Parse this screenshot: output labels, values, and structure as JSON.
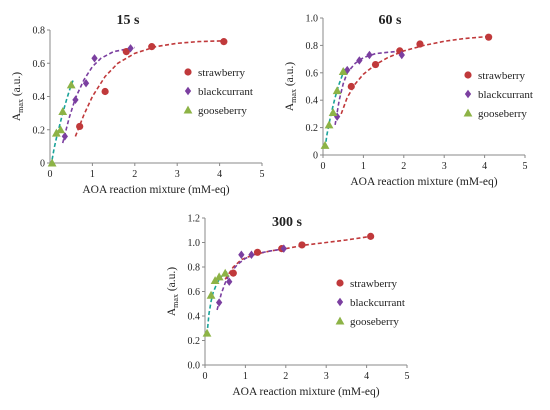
{
  "colors": {
    "strawberry": "#c0393b",
    "blackcurrant": "#7b3fa0",
    "gooseberry": "#8db346",
    "fit_gooseberry": "#1aa39a",
    "axis": "#888888",
    "text": "#222222"
  },
  "chart_data": [
    {
      "type": "scatter",
      "title": "15 s",
      "xlabel": "AOA reaction mixture (mM-eq)",
      "ylabel": "A",
      "ylabel_sub": "max",
      "ylabel_suffix": " (a.u.)",
      "xlim": [
        0,
        5
      ],
      "ylim": [
        0,
        0.8
      ],
      "xticks": [
        "0",
        "1",
        "2",
        "3",
        "4",
        "5"
      ],
      "yticks": [
        "0",
        "0.2",
        "0.4",
        "0.6",
        "0.8"
      ],
      "legend_position": "right",
      "series": [
        {
          "name": "strawberry",
          "marker": "circle",
          "x": [
            0.7,
            1.3,
            1.8,
            2.4,
            4.1
          ],
          "y": [
            0.22,
            0.43,
            0.67,
            0.7,
            0.73
          ]
        },
        {
          "name": "blackcurrant",
          "marker": "diamond",
          "x": [
            0.35,
            0.6,
            0.85,
            1.05,
            1.9
          ],
          "y": [
            0.16,
            0.38,
            0.48,
            0.63,
            0.69
          ]
        },
        {
          "name": "gooseberry",
          "marker": "triangle",
          "x": [
            0.05,
            0.15,
            0.25,
            0.3,
            0.5
          ],
          "y": [
            0.0,
            0.18,
            0.2,
            0.31,
            0.47
          ]
        }
      ],
      "fits": [
        {
          "series": "strawberry",
          "x": [
            0.6,
            0.8,
            1.0,
            1.3,
            1.6,
            2.0,
            2.5,
            3.0,
            3.5,
            4.1
          ],
          "y": [
            0.16,
            0.29,
            0.4,
            0.52,
            0.6,
            0.66,
            0.7,
            0.72,
            0.73,
            0.735
          ]
        },
        {
          "series": "blackcurrant",
          "x": [
            0.3,
            0.45,
            0.6,
            0.8,
            1.0,
            1.2,
            1.5,
            1.9,
            2.0
          ],
          "y": [
            0.12,
            0.27,
            0.39,
            0.5,
            0.58,
            0.63,
            0.67,
            0.69,
            0.695
          ]
        },
        {
          "series": "gooseberry",
          "x": [
            0.05,
            0.1,
            0.15,
            0.2,
            0.3,
            0.4,
            0.5,
            0.55
          ],
          "y": [
            0.02,
            0.09,
            0.15,
            0.2,
            0.3,
            0.39,
            0.47,
            0.5
          ]
        }
      ]
    },
    {
      "type": "scatter",
      "title": "60 s",
      "xlabel": "AOA reaction mixture (mM-eq)",
      "ylabel": "A",
      "ylabel_sub": "max",
      "ylabel_suffix": " (a.u.)",
      "xlim": [
        0,
        5
      ],
      "ylim": [
        0,
        1.0
      ],
      "xticks": [
        "0",
        "1",
        "2",
        "3",
        "4",
        "5"
      ],
      "yticks": [
        "0",
        "0.2",
        "0.4",
        "0.6",
        "0.8",
        "1.0"
      ],
      "legend_position": "right",
      "series": [
        {
          "name": "strawberry",
          "marker": "circle",
          "x": [
            0.7,
            1.3,
            1.9,
            2.4,
            4.1
          ],
          "y": [
            0.5,
            0.66,
            0.76,
            0.81,
            0.86
          ]
        },
        {
          "name": "blackcurrant",
          "marker": "diamond",
          "x": [
            0.35,
            0.6,
            0.9,
            1.15,
            1.95
          ],
          "y": [
            0.28,
            0.62,
            0.69,
            0.73,
            0.73
          ]
        },
        {
          "name": "gooseberry",
          "marker": "triangle",
          "x": [
            0.05,
            0.15,
            0.25,
            0.35,
            0.5
          ],
          "y": [
            0.07,
            0.22,
            0.31,
            0.47,
            0.61
          ]
        }
      ],
      "fits": [
        {
          "series": "strawberry",
          "x": [
            0.45,
            0.6,
            0.8,
            1.0,
            1.3,
            1.6,
            2.0,
            2.5,
            3.0,
            3.5,
            4.1
          ],
          "y": [
            0.3,
            0.42,
            0.52,
            0.59,
            0.66,
            0.71,
            0.76,
            0.8,
            0.83,
            0.85,
            0.865
          ]
        },
        {
          "series": "blackcurrant",
          "x": [
            0.3,
            0.4,
            0.5,
            0.6,
            0.8,
            1.0,
            1.3,
            1.6,
            2.0
          ],
          "y": [
            0.22,
            0.4,
            0.52,
            0.6,
            0.67,
            0.71,
            0.74,
            0.75,
            0.76
          ]
        },
        {
          "series": "gooseberry",
          "x": [
            0.05,
            0.1,
            0.15,
            0.2,
            0.3,
            0.4,
            0.5,
            0.55
          ],
          "y": [
            0.05,
            0.15,
            0.23,
            0.3,
            0.42,
            0.52,
            0.6,
            0.63
          ]
        }
      ]
    },
    {
      "type": "scatter",
      "title": "300 s",
      "xlabel": "AOA reaction mixture (mM-eq)",
      "ylabel": "A",
      "ylabel_sub": "max",
      "ylabel_suffix": " (a.u.)",
      "xlim": [
        0,
        5
      ],
      "ylim": [
        0,
        1.2
      ],
      "xticks": [
        "0",
        "1",
        "2",
        "3",
        "4",
        "5"
      ],
      "yticks": [
        "0.0",
        "0.2",
        "0.4",
        "0.6",
        "0.8",
        "1.0",
        "1.2"
      ],
      "legend_position": "right",
      "series": [
        {
          "name": "strawberry",
          "marker": "circle",
          "x": [
            0.7,
            1.3,
            1.9,
            2.4,
            4.1
          ],
          "y": [
            0.75,
            0.92,
            0.95,
            0.98,
            1.05
          ]
        },
        {
          "name": "blackcurrant",
          "marker": "diamond",
          "x": [
            0.35,
            0.6,
            0.9,
            1.15,
            1.95
          ],
          "y": [
            0.51,
            0.68,
            0.9,
            0.9,
            0.95
          ]
        },
        {
          "name": "gooseberry",
          "marker": "triangle",
          "x": [
            0.05,
            0.15,
            0.25,
            0.35,
            0.5
          ],
          "y": [
            0.26,
            0.57,
            0.69,
            0.72,
            0.75
          ]
        }
      ],
      "fits": [
        {
          "series": "strawberry",
          "x": [
            0.5,
            0.7,
            0.9,
            1.2,
            1.6,
            2.0,
            2.5,
            3.0,
            3.5,
            4.1
          ],
          "y": [
            0.7,
            0.8,
            0.86,
            0.9,
            0.93,
            0.95,
            0.98,
            1.0,
            1.02,
            1.05
          ]
        },
        {
          "series": "blackcurrant",
          "x": [
            0.3,
            0.4,
            0.5,
            0.6,
            0.8,
            1.0,
            1.3,
            1.6,
            2.0
          ],
          "y": [
            0.45,
            0.58,
            0.67,
            0.74,
            0.82,
            0.87,
            0.91,
            0.93,
            0.95
          ]
        },
        {
          "series": "gooseberry",
          "x": [
            0.05,
            0.1,
            0.15,
            0.2,
            0.3,
            0.4,
            0.5,
            0.55
          ],
          "y": [
            0.25,
            0.42,
            0.52,
            0.59,
            0.67,
            0.72,
            0.75,
            0.76
          ]
        }
      ]
    }
  ]
}
